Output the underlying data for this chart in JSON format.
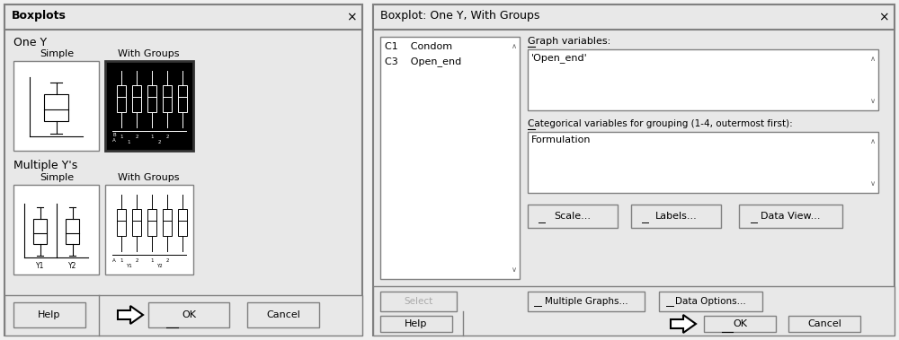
{
  "bg_color": "#d4d0c8",
  "dialog1": {
    "title": "Boxplots",
    "one_y": "One Y",
    "simple1": "Simple",
    "with_groups1": "With Groups",
    "multiple_ys": "Multiple Y's",
    "simple2": "Simple",
    "with_groups2": "With Groups"
  },
  "dialog2": {
    "title": "Boxplot: One Y, With Groups",
    "list_item1": "C1    Condom",
    "list_item2": "C3    Open_end",
    "graph_vars_label": "Graph variables:",
    "graph_vars_content": "'Open_end'",
    "cat_vars_label": "Categorical variables for grouping (1-4, outermost first):",
    "cat_vars_content": "Formulation",
    "scale_btn": "Scale...",
    "labels_btn": "Labels...",
    "dataview_btn": "Data View...",
    "select_btn": "Select",
    "multigraph_btn": "Multiple Graphs...",
    "dataopts_btn": "Data Options...",
    "help_btn": "Help",
    "ok_btn": "OK",
    "cancel_btn": "Cancel"
  }
}
